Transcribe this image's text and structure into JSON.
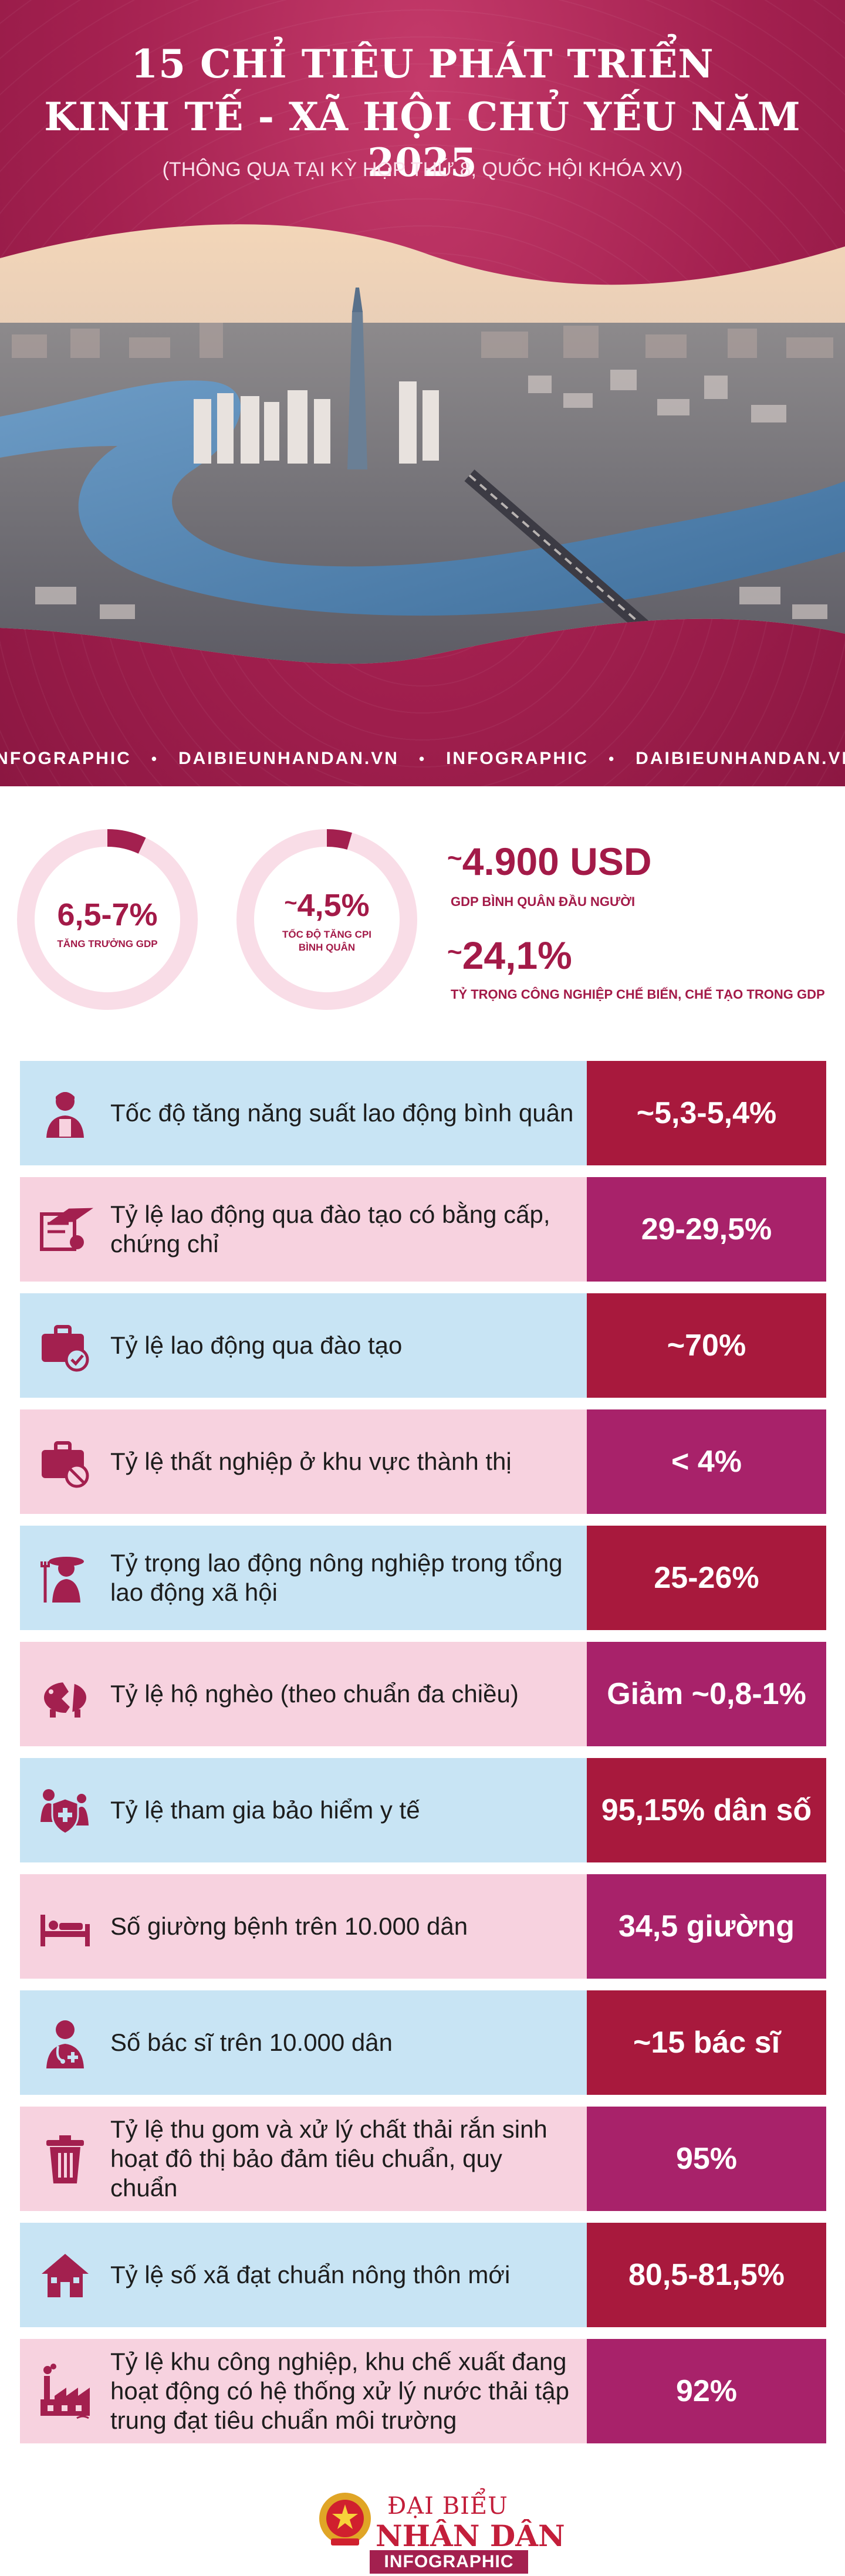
{
  "header": {
    "title_line1": "15 CHỈ TIÊU PHÁT TRIỂN",
    "title_line2": "KINH TẾ - XÃ HỘI CHỦ YẾU NĂM 2025",
    "subtitle": "(THÔNG QUA TẠI KỲ HỌP THỨ 8, QUỐC HỘI KHÓA XV)",
    "ribbon": [
      "INFOGRAPHIC",
      "DAIBIEUNHANDAN.VN",
      "INFOGRAPHIC",
      "DAIBIEUNHANDAN.VN"
    ],
    "ribbon_separator": "•"
  },
  "key_figures": {
    "gdp_growth": {
      "value": "6,5-7%",
      "label": "TĂNG TRƯỞNG GDP",
      "fraction": 0.07
    },
    "cpi": {
      "tilde": "~",
      "value": "4,5%",
      "label_line1": "TỐC ĐỘ TĂNG CPI",
      "label_line2": "BÌNH QUÂN",
      "fraction": 0.045
    },
    "gdp_per_capita": {
      "tilde": "~",
      "value": "4.900 USD",
      "label": "GDP BÌNH QUÂN ĐẦU NGƯỜI"
    },
    "manufacturing": {
      "tilde": "~",
      "value": "24,1%",
      "label": "TỶ TRỌNG CÔNG NGHIỆP CHẾ BIẾN, CHẾ TẠO TRONG GDP"
    }
  },
  "indicators": [
    {
      "label": "Tốc độ tăng năng suất lao động bình quân",
      "value": "~5,3-5,4%",
      "icon": "worker-icon",
      "style": "blue"
    },
    {
      "label": "Tỷ lệ lao động qua đào tạo có bằng cấp, chứng chỉ",
      "value": "29-29,5%",
      "icon": "diploma-icon",
      "style": "pink"
    },
    {
      "label": "Tỷ lệ lao động qua đào tạo",
      "value": "~70%",
      "icon": "briefcase-check-icon",
      "style": "blue"
    },
    {
      "label": "Tỷ lệ thất nghiệp ở khu vực thành thị",
      "value": "< 4%",
      "icon": "briefcase-ban-icon",
      "style": "pink"
    },
    {
      "label": "Tỷ trọng lao động nông nghiệp trong tổng lao động xã hội",
      "value": "25-26%",
      "icon": "farmer-icon",
      "style": "blue"
    },
    {
      "label": "Tỷ lệ hộ nghèo (theo chuẩn đa chiều)",
      "value": "Giảm ~0,8-1%",
      "icon": "broken-piggy-icon",
      "style": "pink"
    },
    {
      "label": "Tỷ lệ tham gia bảo hiểm y tế",
      "value": "95,15% dân số",
      "icon": "family-shield-icon",
      "style": "blue"
    },
    {
      "label": "Số giường bệnh trên 10.000 dân",
      "value": "34,5 giường",
      "icon": "hospital-bed-icon",
      "style": "pink"
    },
    {
      "label": "Số bác sĩ trên 10.000 dân",
      "value": "~15 bác sĩ",
      "icon": "doctor-icon",
      "style": "blue"
    },
    {
      "label": "Tỷ lệ thu gom và xử lý chất thải rắn sinh hoạt đô thị bảo đảm tiêu chuẩn, quy chuẩn",
      "value": "95%",
      "icon": "trash-bin-icon",
      "style": "pink"
    },
    {
      "label": "Tỷ lệ số xã đạt chuẩn nông thôn mới",
      "value": "80,5-81,5%",
      "icon": "rural-house-icon",
      "style": "blue"
    },
    {
      "label": "Tỷ lệ khu công nghiệp, khu chế xuất đang hoạt động có hệ thống xử lý nước thải tập trung đạt tiêu chuẩn môi trường",
      "value": "92%",
      "icon": "factory-icon",
      "style": "pink"
    }
  ],
  "footer": {
    "brand_line1": "ĐẠI BIỂU",
    "brand_line2": "NHÂN DÂN",
    "tag": "INFOGRAPHIC"
  },
  "colors": {
    "maroon": "#a3204f",
    "row_blue": "#c8e4f4",
    "row_pink": "#f7d2df",
    "value_red": "#a8193d",
    "value_magenta": "#a8226a",
    "ring_track": "#f9dde7"
  }
}
